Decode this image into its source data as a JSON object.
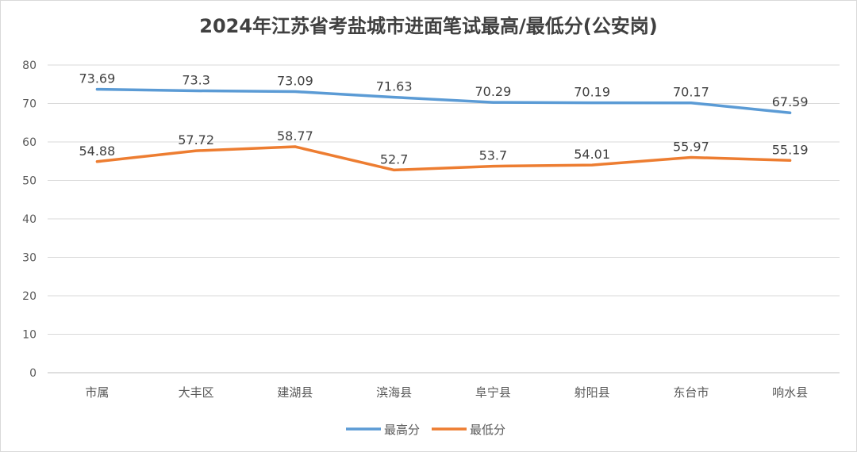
{
  "chart_data": {
    "type": "line",
    "title": "2024年江苏省考盐城市进面笔试最高/最低分(公安岗)",
    "xlabel": "",
    "ylabel": "",
    "categories": [
      "市属",
      "大丰区",
      "建湖县",
      "滨海县",
      "阜宁县",
      "射阳县",
      "东台市",
      "响水县"
    ],
    "ylim": [
      0,
      80
    ],
    "yticks": [
      0,
      10,
      20,
      30,
      40,
      50,
      60,
      70,
      80
    ],
    "grid": true,
    "legend_position": "bottom",
    "series": [
      {
        "name": "最高分",
        "color": "#5b9bd5",
        "values": [
          73.69,
          73.3,
          73.09,
          71.63,
          70.29,
          70.19,
          70.17,
          67.59
        ],
        "labels": [
          "73.69",
          "73.3",
          "73.09",
          "71.63",
          "70.29",
          "70.19",
          "70.17",
          "67.59"
        ]
      },
      {
        "name": "最低分",
        "color": "#ed7d31",
        "values": [
          54.88,
          57.72,
          58.77,
          52.7,
          53.7,
          54.01,
          55.97,
          55.19
        ],
        "labels": [
          "54.88",
          "57.72",
          "58.77",
          "52.7",
          "53.7",
          "54.01",
          "55.97",
          "55.19"
        ]
      }
    ]
  }
}
